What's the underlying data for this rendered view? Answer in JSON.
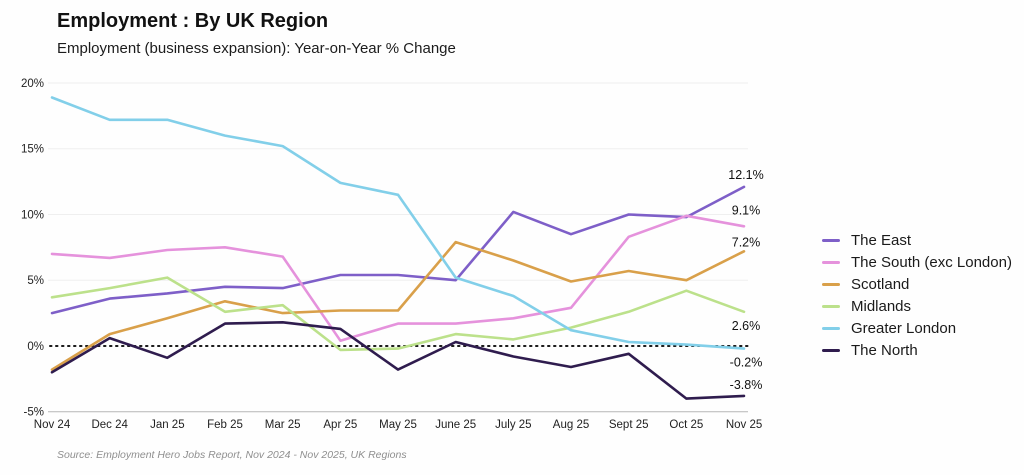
{
  "header": {
    "title": "Employment : By UK Region",
    "subtitle": "Employment (business expansion): Year-on-Year % Change"
  },
  "footer": {
    "source": "Source: Employment Hero Jobs Report, Nov 2024 - Nov 2025, UK Regions"
  },
  "chart_data": {
    "type": "line",
    "title": "Employment : By UK Region",
    "subtitle": "Employment (business expansion): Year-on-Year % Change",
    "xlabel": "",
    "ylabel": "",
    "ylim": [
      -5,
      20
    ],
    "grid": true,
    "zero_line_style": "dotted",
    "legend_position": "right",
    "y_ticks": [
      {
        "value": 20,
        "label": "20%"
      },
      {
        "value": 15,
        "label": "15%"
      },
      {
        "value": 10,
        "label": "10%"
      },
      {
        "value": 5,
        "label": "5%"
      },
      {
        "value": 0,
        "label": "0%"
      },
      {
        "value": -5,
        "label": "-5%"
      }
    ],
    "categories": [
      "Nov 24",
      "Dec 24",
      "Jan 25",
      "Feb 25",
      "Mar 25",
      "Apr 25",
      "May 25",
      "June 25",
      "July 25",
      "Aug 25",
      "Sept 25",
      "Oct 25",
      "Nov 25"
    ],
    "series": [
      {
        "name": "The East",
        "color": "#7e5fc8",
        "end_label": "12.1%",
        "values": [
          2.5,
          3.6,
          4.0,
          4.5,
          4.4,
          5.4,
          5.4,
          5.0,
          10.2,
          8.5,
          10.0,
          9.8,
          12.1
        ]
      },
      {
        "name": "The South (exc London)",
        "color": "#e592dc",
        "end_label": "9.1%",
        "values": [
          7.0,
          6.7,
          7.3,
          7.5,
          6.8,
          0.4,
          1.7,
          1.7,
          2.1,
          2.9,
          8.3,
          9.9,
          9.1
        ]
      },
      {
        "name": "Scotland",
        "color": "#d9a04a",
        "end_label": "7.2%",
        "values": [
          -1.8,
          0.9,
          2.1,
          3.4,
          2.5,
          2.7,
          2.7,
          7.9,
          6.5,
          4.9,
          5.7,
          5.0,
          7.2
        ]
      },
      {
        "name": "Midlands",
        "color": "#bce18b",
        "end_label": "2.6%",
        "values": [
          3.7,
          4.4,
          5.2,
          2.6,
          3.1,
          -0.3,
          -0.2,
          0.9,
          0.5,
          1.4,
          2.6,
          4.2,
          2.6
        ]
      },
      {
        "name": "Greater London",
        "color": "#82cfe9",
        "end_label": "-0.2%",
        "values": [
          18.9,
          17.2,
          17.2,
          16.0,
          15.2,
          12.4,
          11.5,
          5.2,
          3.8,
          1.2,
          0.3,
          0.1,
          -0.2
        ]
      },
      {
        "name": "The North",
        "color": "#2f1c4e",
        "end_label": "-3.8%",
        "values": [
          -2.0,
          0.6,
          -0.9,
          1.7,
          1.8,
          1.3,
          -1.8,
          0.3,
          -0.8,
          -1.6,
          -0.6,
          -4.0,
          -3.8
        ]
      }
    ]
  }
}
